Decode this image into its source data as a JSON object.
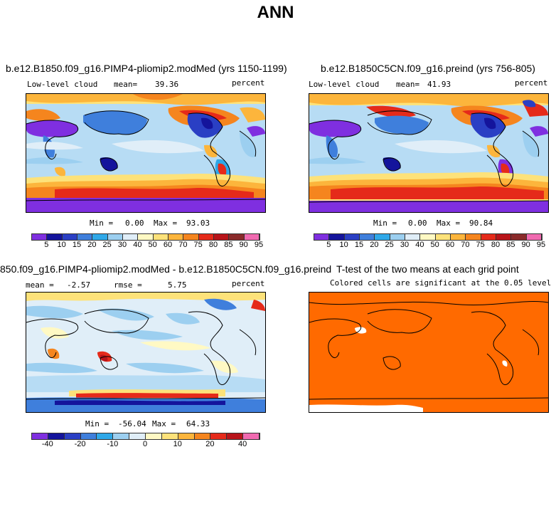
{
  "figure": {
    "title": "ANN"
  },
  "panels": {
    "test": {
      "title": "b.e12.B1850.f09_g16.PIMP4-pliomip2.modMed (yrs 1150-1199)",
      "field_label": "Low-level cloud",
      "mean_label": "mean=",
      "mean_value": "39.36",
      "units": "percent",
      "min_label": "Min =",
      "min_value": "0.00",
      "max_label": "Max =",
      "max_value": "93.03"
    },
    "control": {
      "title": "b.e12.B1850C5CN.f09_g16.preind (yrs 756-805)",
      "field_label": "Low-level cloud",
      "mean_label": "mean=",
      "mean_value": "41.93",
      "units": "percent",
      "min_label": "Min =",
      "min_value": "0.00",
      "max_label": "Max =",
      "max_value": "90.84"
    },
    "difference": {
      "title": "850.f09_g16.PIMP4-pliomip2.modMed - b.e12.B1850C5CN.f09_g16.preind",
      "mean_label": "mean =",
      "mean_value": "-2.57",
      "rmse_label": "rmse =",
      "rmse_value": "5.75",
      "units": "percent",
      "min_label": "Min =",
      "min_value": "-56.04",
      "max_label": "Max =",
      "max_value": "64.33"
    },
    "ttest": {
      "title": "T-test of the two means at each grid point",
      "subtitle": "Colored cells are significant at the 0.05 level"
    }
  },
  "colorbars": {
    "abs_colors": [
      "#7f2fe0",
      "#14149c",
      "#2a3fc4",
      "#3f7fdc",
      "#2fa8e8",
      "#9ccff0",
      "#e0eef8",
      "#fff9c4",
      "#fde27a",
      "#fcb53c",
      "#f5851e",
      "#e52a1a",
      "#b8141a",
      "#8a2a2a",
      "#f06ab0"
    ],
    "abs_labels": [
      "5",
      "10",
      "15",
      "20",
      "25",
      "30",
      "40",
      "50",
      "60",
      "70",
      "75",
      "80",
      "85",
      "90",
      "95"
    ],
    "diff_colors": [
      "#7f2fe0",
      "#14149c",
      "#2a3fc4",
      "#3f7fdc",
      "#2fa8e8",
      "#9ccff0",
      "#e0eef8",
      "#fff9c4",
      "#fde27a",
      "#fcb53c",
      "#f5851e",
      "#e52a1a",
      "#b8141a",
      "#f06ab0"
    ],
    "diff_labels": [
      "-40",
      "-20",
      "-10",
      "0",
      "10",
      "20",
      "40"
    ]
  },
  "colors": {
    "ttest_fill": "#ff6a00",
    "ocean_mid": "#b7dcf4",
    "coast": "#000000"
  },
  "chart_data": [
    {
      "type": "heatmap",
      "title": "b.e12.B1850.f09_g16.PIMP4-pliomip2.modMed (yrs 1150-1199)",
      "variable": "Low-level cloud",
      "units": "percent",
      "mean": 39.36,
      "min": 0.0,
      "max": 93.03,
      "levels": [
        5,
        10,
        15,
        20,
        25,
        30,
        40,
        50,
        60,
        70,
        75,
        80,
        85,
        90,
        95
      ]
    },
    {
      "type": "heatmap",
      "title": "b.e12.B1850C5CN.f09_g16.preind (yrs 756-805)",
      "variable": "Low-level cloud",
      "units": "percent",
      "mean": 41.93,
      "min": 0.0,
      "max": 90.84,
      "levels": [
        5,
        10,
        15,
        20,
        25,
        30,
        40,
        50,
        60,
        70,
        75,
        80,
        85,
        90,
        95
      ]
    },
    {
      "type": "heatmap",
      "title": "850.f09_g16.PIMP4-pliomip2.modMed - b.e12.B1850C5CN.f09_g16.preind",
      "units": "percent",
      "mean": -2.57,
      "rmse": 5.75,
      "min": -56.04,
      "max": 64.33,
      "tick_labels": [
        -40,
        -20,
        -10,
        0,
        10,
        20,
        40
      ]
    },
    {
      "type": "heatmap",
      "title": "T-test of the two means at each grid point",
      "subtitle": "Colored cells are significant at the 0.05 level",
      "significance_level": 0.05
    }
  ]
}
